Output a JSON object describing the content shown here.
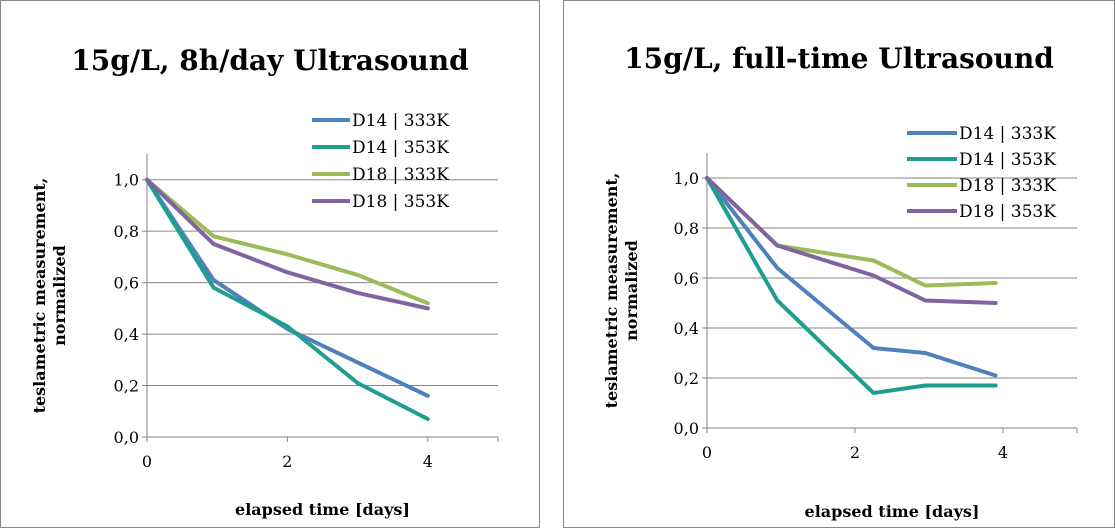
{
  "colors": {
    "series_palette": [
      "#4F81BD",
      "#1F9E8E",
      "#9BBB59",
      "#8064A2"
    ],
    "frame": "#868686"
  },
  "chart_data": [
    {
      "type": "line",
      "title": "15g/L, 8h/day Ultrasound",
      "xlabel": "elapsed time [days]",
      "ylabel": [
        "teslametric measurement,",
        "normalized"
      ],
      "xlim": [
        0,
        5
      ],
      "ylim": [
        0,
        1.0
      ],
      "x_ticks": [
        "0",
        "2",
        "4"
      ],
      "y_ticks": [
        "0,0",
        "0,2",
        "0,4",
        "0,6",
        "0,8",
        "1,0"
      ],
      "grid": true,
      "legend_position": "top-right",
      "series": [
        {
          "name": "D14 | 333K",
          "x": [
            0,
            0.95,
            2.0,
            3.0,
            4.0
          ],
          "y": [
            1.0,
            0.61,
            0.42,
            0.29,
            0.16
          ]
        },
        {
          "name": "D14 | 353K",
          "x": [
            0,
            0.95,
            2.0,
            3.0,
            4.0
          ],
          "y": [
            1.0,
            0.58,
            0.43,
            0.21,
            0.07
          ]
        },
        {
          "name": "D18 | 333K",
          "x": [
            0,
            0.95,
            2.0,
            3.0,
            4.0
          ],
          "y": [
            1.0,
            0.78,
            0.71,
            0.63,
            0.52
          ]
        },
        {
          "name": "D18 | 353K",
          "x": [
            0,
            0.95,
            2.0,
            3.0,
            4.0
          ],
          "y": [
            1.0,
            0.75,
            0.64,
            0.56,
            0.5
          ]
        }
      ]
    },
    {
      "type": "line",
      "title": "15g/L, full-time Ultrasound",
      "xlabel": "elapsed time [days]",
      "ylabel": [
        "teslametric measurement,",
        "normalized"
      ],
      "xlim": [
        0,
        5
      ],
      "ylim": [
        0,
        1.0
      ],
      "x_ticks": [
        "0",
        "2",
        "4"
      ],
      "y_ticks": [
        "0,0",
        "0,2",
        "0,4",
        "0,6",
        "0,8",
        "1,0"
      ],
      "grid": true,
      "legend_position": "top-right",
      "series": [
        {
          "name": "D14 | 333K",
          "x": [
            0,
            0.95,
            2.25,
            2.95,
            3.9
          ],
          "y": [
            1.0,
            0.64,
            0.32,
            0.3,
            0.21
          ]
        },
        {
          "name": "D14 | 353K",
          "x": [
            0,
            0.95,
            2.25,
            2.95,
            3.9
          ],
          "y": [
            1.0,
            0.51,
            0.14,
            0.17,
            0.17
          ]
        },
        {
          "name": "D18 | 333K",
          "x": [
            0,
            0.95,
            2.25,
            2.95,
            3.9
          ],
          "y": [
            1.0,
            0.73,
            0.67,
            0.57,
            0.58
          ]
        },
        {
          "name": "D18 | 353K",
          "x": [
            0,
            0.95,
            2.25,
            2.95,
            3.9
          ],
          "y": [
            1.0,
            0.73,
            0.61,
            0.51,
            0.5
          ]
        }
      ]
    }
  ]
}
